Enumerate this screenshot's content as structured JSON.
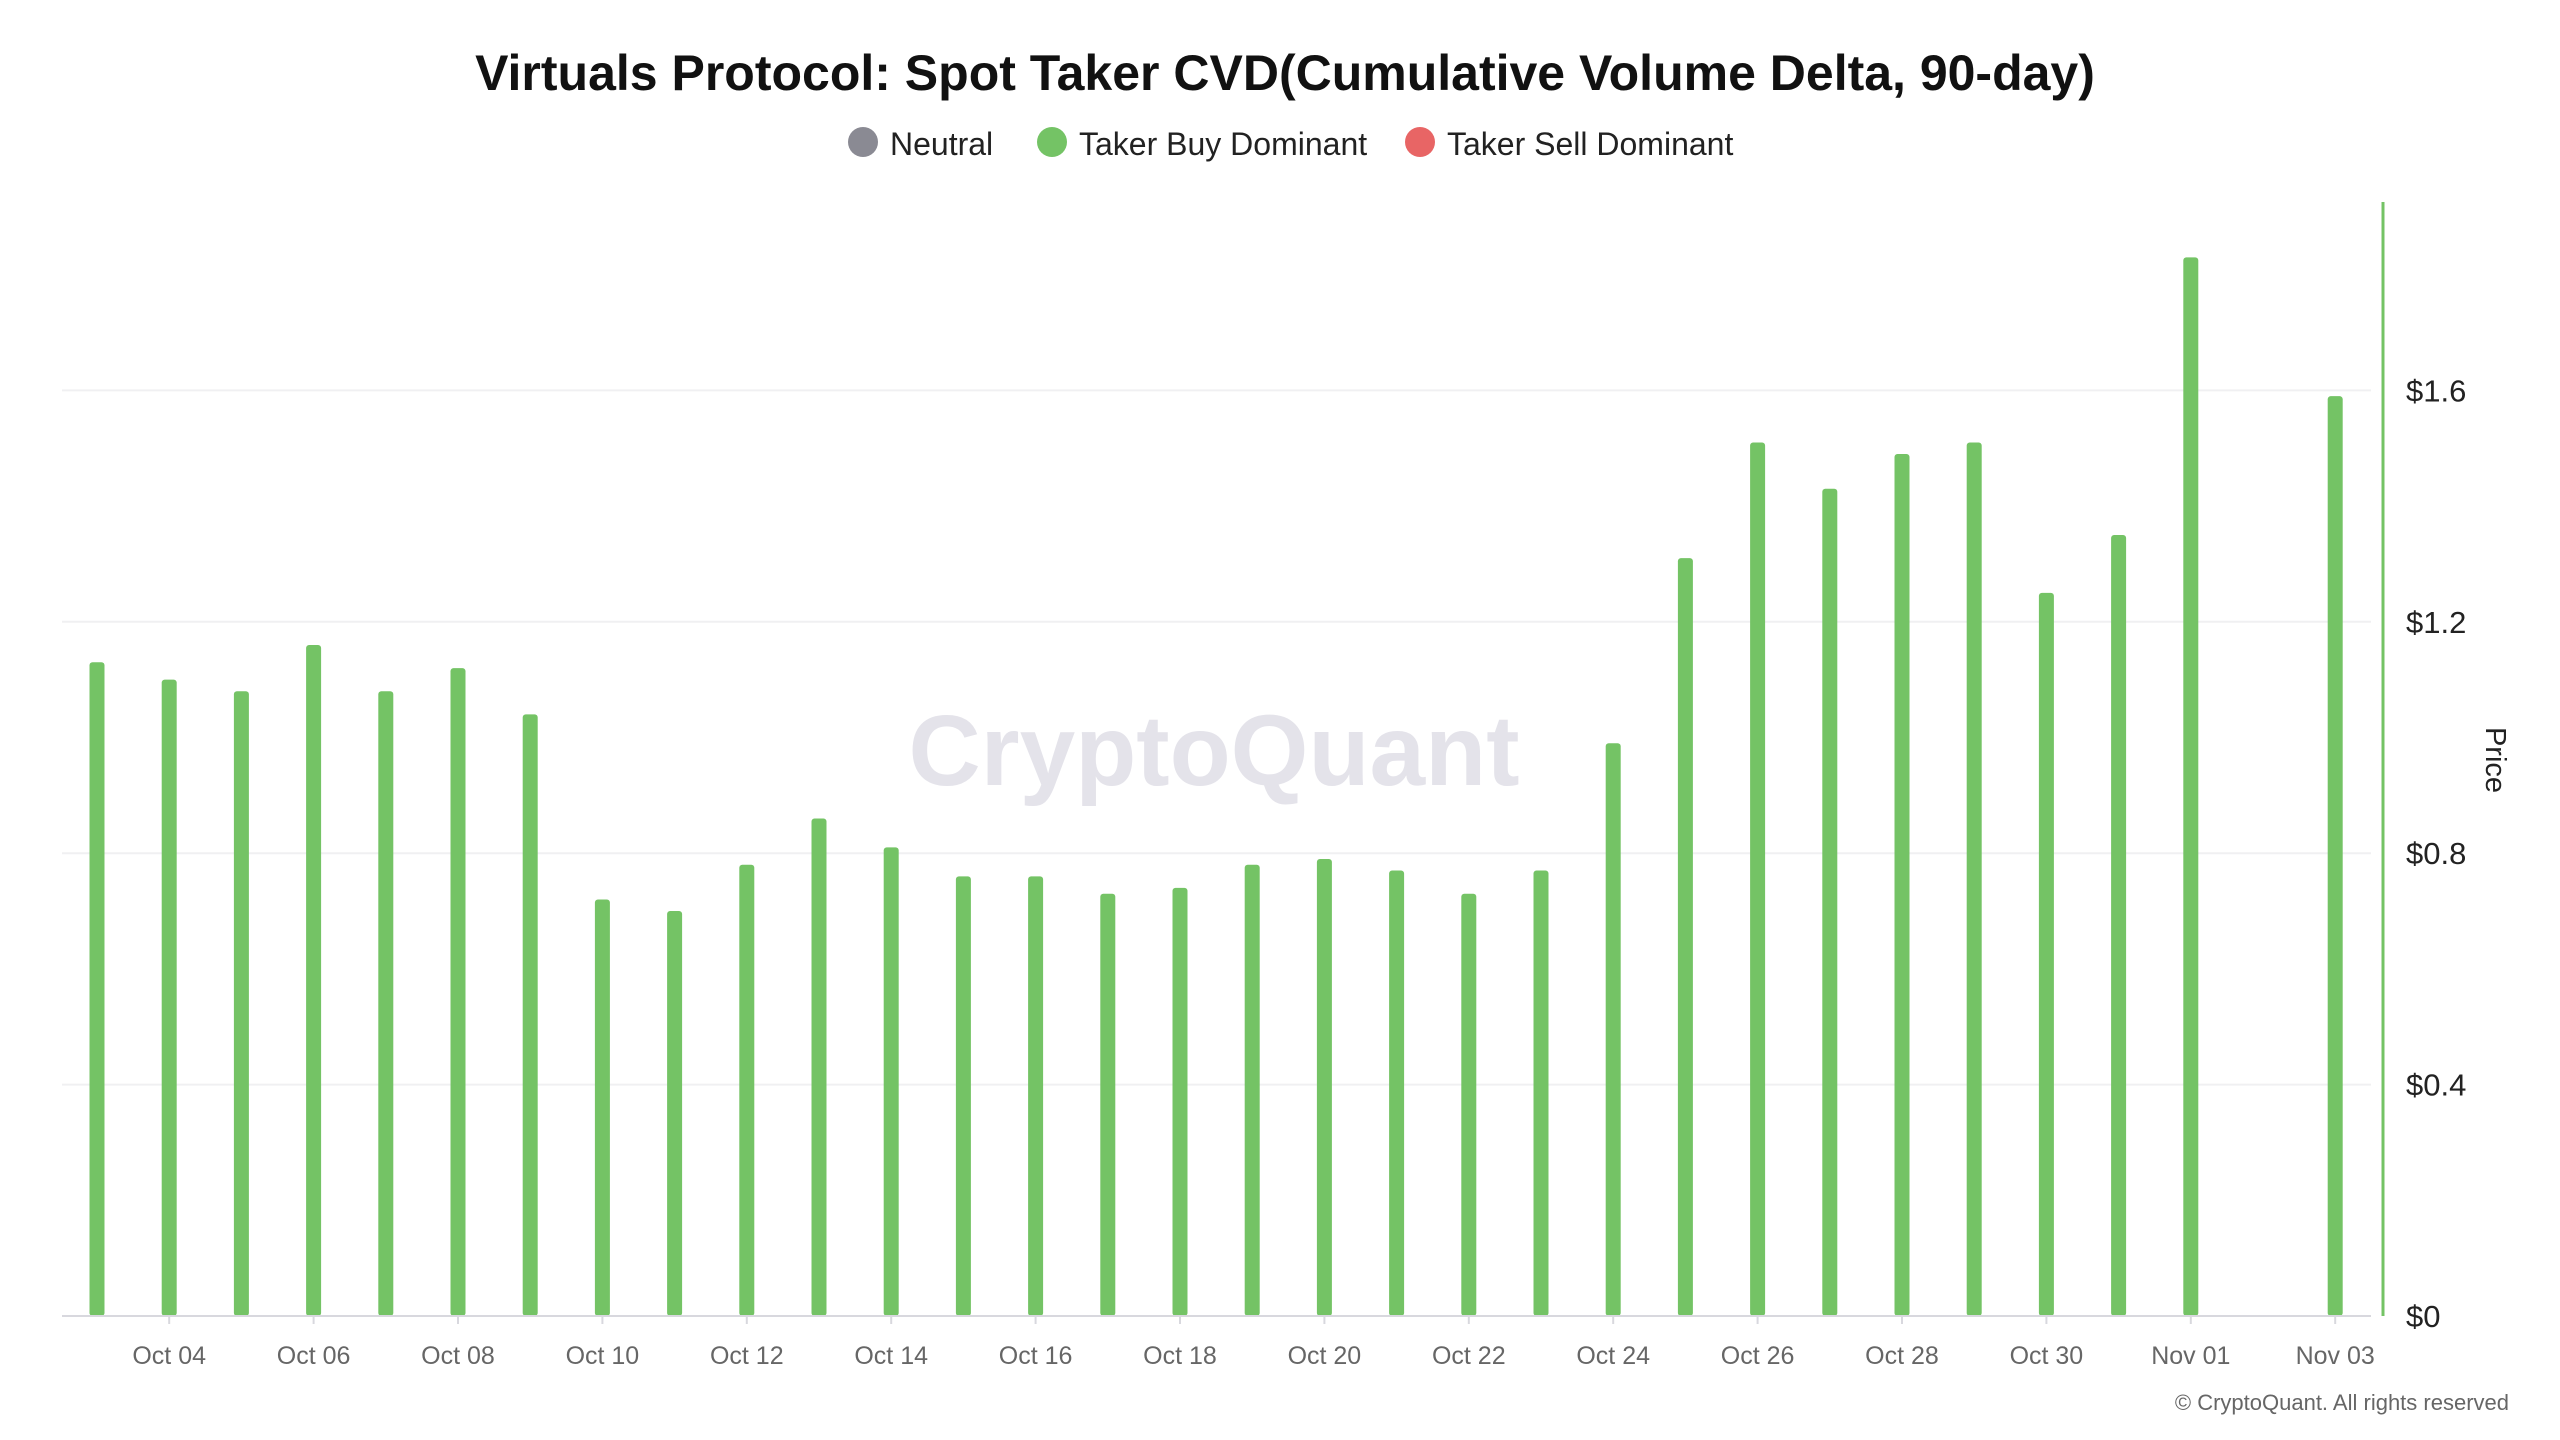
{
  "chart_data": {
    "type": "bar",
    "title": "Virtuals Protocol: Spot Taker CVD(Cumulative Volume Delta, 90-day)",
    "legend": [
      {
        "name": "Neutral",
        "color": "#8a8a93"
      },
      {
        "name": "Taker Buy Dominant",
        "color": "#74c365"
      },
      {
        "name": "Taker Sell Dominant",
        "color": "#e86565"
      }
    ],
    "legend_position": "top",
    "ylabel": "Price",
    "ylim": [
      0,
      1.92
    ],
    "yticks": [
      0,
      0.4,
      0.8,
      1.2,
      1.6
    ],
    "ytick_labels": [
      "$0",
      "$0.4",
      "$0.8",
      "$1.2",
      "$1.6"
    ],
    "xtick_labels": [
      "Oct 04",
      "Oct 06",
      "Oct 08",
      "Oct 10",
      "Oct 12",
      "Oct 14",
      "Oct 16",
      "Oct 18",
      "Oct 20",
      "Oct 22",
      "Oct 24",
      "Oct 26",
      "Oct 28",
      "Oct 30",
      "Nov 01",
      "Nov 03"
    ],
    "grid": true,
    "categories": [
      "Oct 03",
      "Oct 04",
      "Oct 05",
      "Oct 06",
      "Oct 07",
      "Oct 08",
      "Oct 09",
      "Oct 10",
      "Oct 11",
      "Oct 12",
      "Oct 13",
      "Oct 14",
      "Oct 15",
      "Oct 16",
      "Oct 17",
      "Oct 18",
      "Oct 19",
      "Oct 20",
      "Oct 21",
      "Oct 22",
      "Oct 23",
      "Oct 24",
      "Oct 25",
      "Oct 26",
      "Oct 27",
      "Oct 28",
      "Oct 29",
      "Oct 30",
      "Oct 31",
      "Nov 01",
      "Nov 02",
      "Nov 03"
    ],
    "values": [
      1.13,
      1.1,
      1.08,
      1.16,
      1.08,
      1.12,
      1.04,
      0.72,
      0.7,
      0.78,
      0.86,
      0.81,
      0.76,
      0.76,
      0.73,
      0.74,
      0.78,
      0.79,
      0.77,
      0.73,
      0.77,
      0.99,
      1.31,
      1.51,
      1.43,
      1.49,
      1.51,
      1.25,
      1.35,
      1.83,
      null,
      1.59
    ],
    "bar_category": "Taker Buy Dominant"
  },
  "watermark": "CryptoQuant",
  "footer": "© CryptoQuant. All rights reserved"
}
